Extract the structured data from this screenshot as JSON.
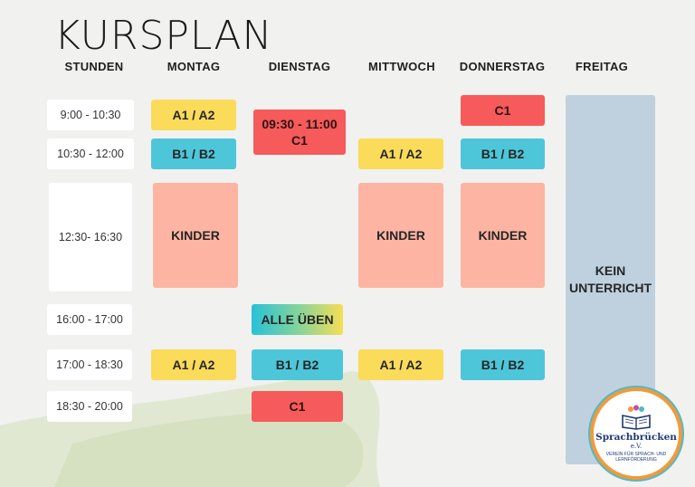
{
  "title": "KURSPLAN",
  "headers": [
    "STUNDEN",
    "MONTAG",
    "DIENSTAG",
    "MITTWOCH",
    "DONNERSTAG",
    "FREITAG"
  ],
  "times": [
    "9:00 - 10:30",
    "10:30 - 12:00",
    "12:30- 16:30",
    "16:00 - 17:00",
    "17:00 - 18:30",
    "18:30 - 20:00"
  ],
  "courses": {
    "mon_1": "A1 / A2",
    "mon_2": "B1 / B2",
    "mon_kinder": "KINDER",
    "mon_5": "A1 / A2",
    "tue_1_time": "09:30 - 11:00",
    "tue_1_level": "C1",
    "tue_4": "ALLE ÜBEN",
    "tue_5": "B1 / B2",
    "tue_6": "C1",
    "wed_2": "A1 / A2",
    "wed_kinder": "KINDER",
    "wed_5": "A1 / A2",
    "thu_1": "C1",
    "thu_2": "B1 / B2",
    "thu_kinder": "KINDER",
    "thu_5": "B1 / B2",
    "fri_line1": "KEIN",
    "fri_line2": "UNTERRICHT"
  },
  "logo": {
    "name": "Sprachbrücken",
    "ev": "e.V.",
    "tagline1": "VEREIN FÜR SPRACH- UND",
    "tagline2": "LERNFÖRDERUNG"
  },
  "colors": {
    "yellow": "#fadb5a",
    "teal": "#4ec6d9",
    "red": "#f65a5a",
    "salmon": "#fdb4a2",
    "grey": "#bfd1de"
  }
}
